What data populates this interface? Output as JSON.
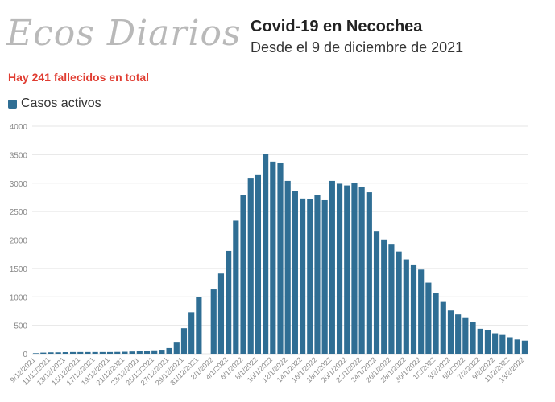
{
  "header": {
    "logo_text": "Ecos Diarios",
    "title": "Covid-19 en Necochea",
    "subtitle": "Desde el 9 de diciembre de 2021",
    "note": "Hay 241 fallecidos en total"
  },
  "colors": {
    "bar": "#2f6e94",
    "note": "#e03c31",
    "grid": "#e6e6e6",
    "axis_text": "#888888"
  },
  "chart_data": {
    "type": "bar",
    "legend_position": "top-left",
    "grid": true,
    "ylim": [
      0,
      4000
    ],
    "yticks": [
      0,
      500,
      1000,
      1500,
      2000,
      2500,
      3000,
      3500,
      4000
    ],
    "series": [
      {
        "name": "Casos activos"
      }
    ],
    "categories": [
      "9/12/2021",
      "10/12/2021",
      "11/12/2021",
      "12/12/2021",
      "13/12/2021",
      "14/12/2021",
      "15/12/2021",
      "16/12/2021",
      "17/12/2021",
      "18/12/2021",
      "19/12/2021",
      "20/12/2021",
      "21/12/2021",
      "22/12/2021",
      "23/12/2021",
      "24/12/2021",
      "25/12/2021",
      "26/12/2021",
      "27/12/2021",
      "28/12/2021",
      "29/12/2021",
      "30/12/2021",
      "31/12/2021",
      "1/1/2022",
      "2/1/2022",
      "3/1/2022",
      "4/1/2022",
      "5/1/2022",
      "6/1/2022",
      "7/1/2022",
      "8/1/2022",
      "9/1/2022",
      "10/1/2022",
      "11/1/2022",
      "12/1/2022",
      "13/1/2022",
      "14/1/2022",
      "15/1/2022",
      "16/1/2022",
      "17/1/2022",
      "18/1/2022",
      "19/1/2022",
      "20/1/2022",
      "21/1/2022",
      "22/1/2022",
      "23/1/2022",
      "24/1/2022",
      "25/1/2022",
      "26/1/2022",
      "27/1/2022",
      "28/1/2022",
      "29/1/2022",
      "30/1/2022",
      "31/1/2022",
      "1/2/2022",
      "2/2/2022",
      "3/2/2022",
      "4/2/2022",
      "5/2/2022",
      "6/2/2022",
      "7/2/2022",
      "8/2/2022",
      "9/2/2022",
      "10/2/2022",
      "11/2/2022",
      "12/2/2022",
      "13/2/2022"
    ],
    "values": [
      10,
      20,
      25,
      25,
      28,
      30,
      30,
      30,
      30,
      30,
      30,
      32,
      35,
      40,
      45,
      55,
      60,
      70,
      100,
      210,
      450,
      730,
      1000,
      null,
      1130,
      1410,
      1810,
      2340,
      2790,
      3080,
      3140,
      3510,
      3380,
      3350,
      3040,
      2860,
      2730,
      2720,
      2790,
      2700,
      3040,
      2990,
      2960,
      3000,
      2940,
      2840,
      2160,
      2010,
      1920,
      1800,
      1660,
      1570,
      1480,
      1250,
      1060,
      910,
      760,
      690,
      640,
      560,
      440,
      420,
      360,
      330,
      290,
      250,
      230
    ],
    "tick_labels": [
      "9/12/2021",
      "11/12/2021",
      "13/12/2021",
      "15/12/2021",
      "17/12/2021",
      "19/12/2021",
      "21/12/2021",
      "23/12/2021",
      "25/12/2021",
      "27/12/2021",
      "29/12/2021",
      "31/12/2021",
      "2/1/2022",
      "4/1/2022",
      "6/1/2022",
      "8/1/2022",
      "10/1/2022",
      "12/1/2022",
      "14/1/2022",
      "16/1/2022",
      "18/1/2022",
      "20/1/2022",
      "22/1/2022",
      "24/1/2022",
      "26/1/2022",
      "28/1/2022",
      "30/1/2022",
      "1/2/2022",
      "3/2/2022",
      "5/2/2022",
      "7/2/2022",
      "9/2/2022",
      "11/2/2022",
      "13/2/2022"
    ]
  }
}
